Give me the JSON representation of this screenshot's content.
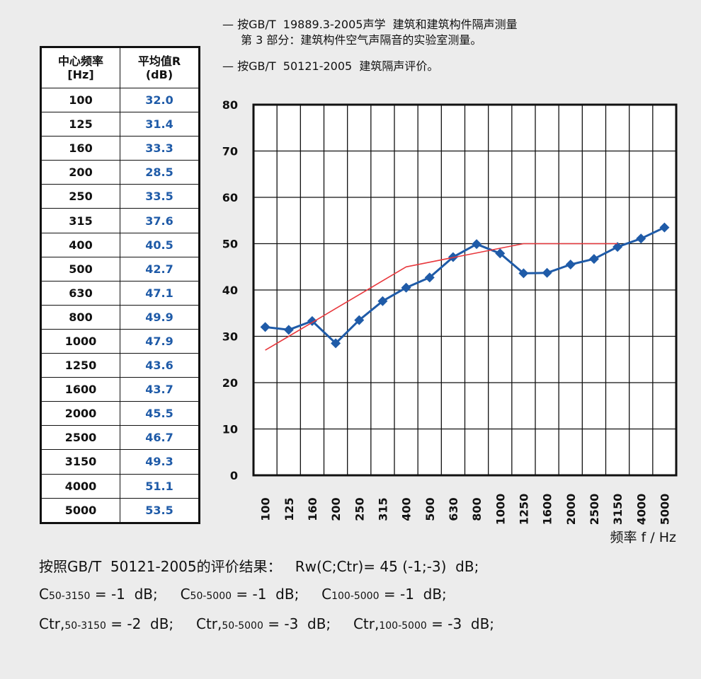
{
  "notes": {
    "line1": "— 按GB/T  19889.3-2005声学  建筑和建筑构件隔声测量",
    "line1b": "第 3 部分：建筑构件空气声隔音的实验室测量。",
    "line2": "— 按GB/T  50121-2005  建筑隔声评价。"
  },
  "table": {
    "header_freq": "中心频率\n[Hz]",
    "header_freq_1": "中心频率",
    "header_freq_2": "[Hz]",
    "header_val_1": "平均值R",
    "header_val_2": "(dB)",
    "rows": [
      {
        "f": "100",
        "r": "32.0"
      },
      {
        "f": "125",
        "r": "31.4"
      },
      {
        "f": "160",
        "r": "33.3"
      },
      {
        "f": "200",
        "r": "28.5"
      },
      {
        "f": "250",
        "r": "33.5"
      },
      {
        "f": "315",
        "r": "37.6"
      },
      {
        "f": "400",
        "r": "40.5"
      },
      {
        "f": "500",
        "r": "42.7"
      },
      {
        "f": "630",
        "r": "47.1"
      },
      {
        "f": "800",
        "r": "49.9"
      },
      {
        "f": "1000",
        "r": "47.9"
      },
      {
        "f": "1250",
        "r": "43.6"
      },
      {
        "f": "1600",
        "r": "43.7"
      },
      {
        "f": "2000",
        "r": "45.5"
      },
      {
        "f": "2500",
        "r": "46.7"
      },
      {
        "f": "3150",
        "r": "49.3"
      },
      {
        "f": "4000",
        "r": "51.1"
      },
      {
        "f": "5000",
        "r": "53.5"
      }
    ]
  },
  "chart_data": {
    "type": "line",
    "categories": [
      "100",
      "125",
      "160",
      "200",
      "250",
      "315",
      "400",
      "500",
      "630",
      "800",
      "1000",
      "1250",
      "1600",
      "2000",
      "2500",
      "3150",
      "4000",
      "5000"
    ],
    "series": [
      {
        "values": [
          32.0,
          31.4,
          33.3,
          28.5,
          33.5,
          37.6,
          40.5,
          42.7,
          47.1,
          49.9,
          47.9,
          43.6,
          43.7,
          45.5,
          46.7,
          49.3,
          51.1,
          53.5
        ],
        "color": "#1f5ba8",
        "marker": "diamond"
      },
      {
        "values": [
          27,
          30,
          33,
          36,
          39,
          42,
          45,
          46,
          47,
          48,
          49,
          50,
          50,
          50,
          50,
          50,
          null,
          null
        ],
        "color": "#e8383d",
        "marker": "none"
      }
    ],
    "yticks": [
      0,
      10,
      20,
      30,
      40,
      50,
      60,
      70,
      80
    ],
    "ylim": [
      0,
      80
    ],
    "xlabel": "频率 f / Hz",
    "ylabel": "",
    "grid": true
  },
  "results": {
    "line1": "按照GB/T  50121-2005的评价结果：   Rw(C;Ctr)= 45 (-1;-3)  dB;",
    "c1_pre": "C",
    "c1_sub": "50-3150",
    "c1_post": " = -1  dB;",
    "c2_pre": "C",
    "c2_sub": "50-5000",
    "c2_post": " = -1  dB;",
    "c3_pre": "C",
    "c3_sub": "100-5000",
    "c3_post": " = -1  dB;",
    "t1_pre": "Ctr,",
    "t1_sub": "50-3150",
    "t1_post": " = -2  dB;",
    "t2_pre": "Ctr,",
    "t2_sub": "50-5000",
    "t2_post": " = -3  dB;",
    "t3_pre": "Ctr,",
    "t3_sub": "100-5000",
    "t3_post": " = -3  dB;"
  }
}
